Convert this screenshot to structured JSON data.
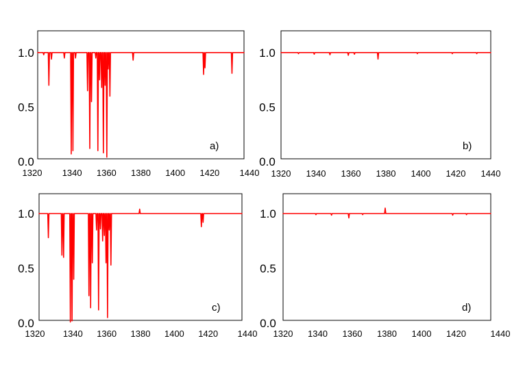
{
  "chart_data": [
    {
      "type": "line",
      "panel_label": "a)",
      "xlim": [
        1320,
        1440
      ],
      "ylim": [
        0,
        1.2
      ],
      "x_ticks": [
        1320,
        1340,
        1360,
        1380,
        1400,
        1420,
        1440
      ],
      "y_ticks": [
        0.0,
        0.5,
        1.0
      ],
      "x_tick_labels": [
        "1320",
        "1340",
        "1360",
        "1380",
        "1400",
        "1420",
        "1440"
      ],
      "y_tick_labels": [
        "0.0",
        "0.5",
        "1.0"
      ],
      "color": "#ff0000",
      "baseline": 1.0,
      "series": [
        {
          "dips": [
            {
              "x": 1323.5,
              "min": 0.98
            },
            {
              "x": 1326.5,
              "min": 0.7
            },
            {
              "x": 1328.0,
              "min": 0.94
            },
            {
              "x": 1335.5,
              "min": 0.95
            },
            {
              "x": 1339.5,
              "min": 0.07
            },
            {
              "x": 1340.5,
              "min": 0.1
            },
            {
              "x": 1342.0,
              "min": 0.95
            },
            {
              "x": 1349.0,
              "min": 0.65
            },
            {
              "x": 1350.3,
              "min": 0.12
            },
            {
              "x": 1351.3,
              "min": 0.55
            },
            {
              "x": 1353.8,
              "min": 0.95
            },
            {
              "x": 1355.0,
              "min": 0.1
            },
            {
              "x": 1356.0,
              "min": 0.75
            },
            {
              "x": 1357.2,
              "min": 0.68
            },
            {
              "x": 1358.2,
              "min": 0.08
            },
            {
              "x": 1359.2,
              "min": 0.7
            },
            {
              "x": 1360.2,
              "min": 0.04
            },
            {
              "x": 1361.0,
              "min": 0.85
            },
            {
              "x": 1362.0,
              "min": 0.6
            },
            {
              "x": 1375.5,
              "min": 0.93
            },
            {
              "x": 1416.5,
              "min": 0.8
            },
            {
              "x": 1417.3,
              "min": 0.86
            },
            {
              "x": 1433.0,
              "min": 0.81
            }
          ]
        }
      ]
    },
    {
      "type": "line",
      "panel_label": "b)",
      "xlim": [
        1320,
        1440
      ],
      "ylim": [
        0,
        1.2
      ],
      "x_ticks": [
        1320,
        1340,
        1360,
        1380,
        1400,
        1420,
        1440
      ],
      "y_ticks": [
        0.0,
        0.5,
        1.0
      ],
      "x_tick_labels": [
        "1320",
        "1340",
        "1360",
        "1380",
        "1400",
        "1420",
        "1440"
      ],
      "y_tick_labels": [
        "0.0",
        "0.5",
        "1.0"
      ],
      "color": "#ff0000",
      "baseline": 1.0,
      "series": [
        {
          "dips": [
            {
              "x": 1330.0,
              "min": 0.99
            },
            {
              "x": 1339.0,
              "min": 0.985
            },
            {
              "x": 1348.0,
              "min": 0.98
            },
            {
              "x": 1358.5,
              "min": 0.975
            },
            {
              "x": 1362.0,
              "min": 0.985
            },
            {
              "x": 1375.5,
              "min": 0.94
            },
            {
              "x": 1398.0,
              "min": 0.99
            },
            {
              "x": 1418.0,
              "min": 0.99
            },
            {
              "x": 1432.0,
              "min": 0.99
            }
          ]
        }
      ]
    },
    {
      "type": "line",
      "panel_label": "c)",
      "xlim": [
        1320,
        1440
      ],
      "ylim": [
        0,
        1.2
      ],
      "x_ticks": [
        1320,
        1340,
        1360,
        1380,
        1400,
        1420,
        1440
      ],
      "y_ticks": [
        0.0,
        0.5,
        1.0
      ],
      "x_tick_labels": [
        "1320",
        "1340",
        "1360",
        "1380",
        "1400",
        "1420",
        "1440"
      ],
      "y_tick_labels": [
        "0.0",
        "0.5",
        "1.0"
      ],
      "color": "#ff0000",
      "baseline": 1.0,
      "series": [
        {
          "dips": [
            {
              "x": 1325.5,
              "min": 0.78
            },
            {
              "x": 1333.5,
              "min": 0.62
            },
            {
              "x": 1334.5,
              "min": 0.6
            },
            {
              "x": 1338.5,
              "min": 0.01
            },
            {
              "x": 1339.5,
              "min": 0.02
            },
            {
              "x": 1340.5,
              "min": 0.4
            },
            {
              "x": 1349.5,
              "min": 0.25
            },
            {
              "x": 1350.5,
              "min": 0.14
            },
            {
              "x": 1351.5,
              "min": 0.55
            },
            {
              "x": 1354.0,
              "min": 0.85
            },
            {
              "x": 1355.2,
              "min": 0.12
            },
            {
              "x": 1356.3,
              "min": 0.86
            },
            {
              "x": 1357.6,
              "min": 0.75
            },
            {
              "x": 1358.6,
              "min": 0.8
            },
            {
              "x": 1359.6,
              "min": 0.55
            },
            {
              "x": 1360.5,
              "min": 0.05
            },
            {
              "x": 1361.5,
              "min": 0.85
            },
            {
              "x": 1362.5,
              "min": 0.53
            },
            {
              "x": 1416.0,
              "min": 0.88
            },
            {
              "x": 1417.0,
              "min": 0.92
            }
          ],
          "peaks": [
            {
              "x": 1379.5,
              "max": 1.04
            }
          ]
        }
      ]
    },
    {
      "type": "line",
      "panel_label": "d)",
      "xlim": [
        1320,
        1440
      ],
      "ylim": [
        0,
        1.2
      ],
      "x_ticks": [
        1320,
        1340,
        1360,
        1380,
        1400,
        1420,
        1440
      ],
      "y_ticks": [
        0.0,
        0.5,
        1.0
      ],
      "x_tick_labels": [
        "1320",
        "1340",
        "1360",
        "1380",
        "1400",
        "1420",
        "1440"
      ],
      "y_tick_labels": [
        "0.0",
        "0.5",
        "1.0"
      ],
      "color": "#ff0000",
      "baseline": 1.0,
      "series": [
        {
          "dips": [
            {
              "x": 1339.0,
              "min": 0.99
            },
            {
              "x": 1348.0,
              "min": 0.985
            },
            {
              "x": 1358.0,
              "min": 0.96
            },
            {
              "x": 1366.0,
              "min": 0.99
            },
            {
              "x": 1418.0,
              "min": 0.985
            },
            {
              "x": 1426.0,
              "min": 0.99
            }
          ],
          "peaks": [
            {
              "x": 1379.0,
              "max": 1.05
            }
          ]
        }
      ]
    }
  ]
}
